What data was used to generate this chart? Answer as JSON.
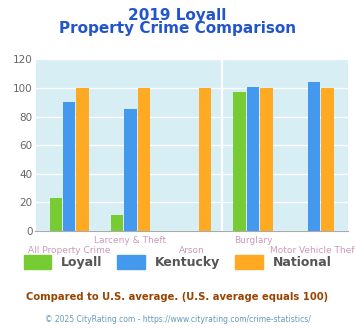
{
  "title_line1": "2019 Loyall",
  "title_line2": "Property Crime Comparison",
  "categories": [
    "All Property Crime",
    "Larceny & Theft",
    "Arson",
    "Burglary",
    "Motor Vehicle Theft"
  ],
  "series": {
    "Loyall": [
      23,
      11,
      null,
      97,
      null
    ],
    "Kentucky": [
      90,
      85,
      null,
      101,
      104
    ],
    "National": [
      100,
      100,
      100,
      100,
      100
    ]
  },
  "colors": {
    "Loyall": "#77cc33",
    "Kentucky": "#4499ee",
    "National": "#ffaa22"
  },
  "ylim": [
    0,
    120
  ],
  "yticks": [
    0,
    20,
    40,
    60,
    80,
    100,
    120
  ],
  "bg_color": "#d8eef5",
  "title_color": "#2255cc",
  "xlabel_color": "#cc99bb",
  "footer_note": "Compared to U.S. average. (U.S. average equals 100)",
  "footer_credit": "© 2025 CityRating.com - https://www.cityrating.com/crime-statistics/",
  "bar_width": 0.22,
  "legend_fontsize": 9,
  "title_fontsize1": 11,
  "title_fontsize2": 11,
  "divider_positions": [
    2.5
  ],
  "group_centers": [
    1.0,
    3.5
  ],
  "cat_xlabels": [
    {
      "text": "All Property Crime",
      "x": 0.0,
      "row": 1
    },
    {
      "text": "Larceny & Theft",
      "x": 1.0,
      "row": 0
    },
    {
      "text": "Arson",
      "x": 2.0,
      "row": 1
    },
    {
      "text": "Burglary",
      "x": 3.0,
      "row": 0
    },
    {
      "text": "Motor Vehicle Theft",
      "x": 4.0,
      "row": 1
    }
  ]
}
